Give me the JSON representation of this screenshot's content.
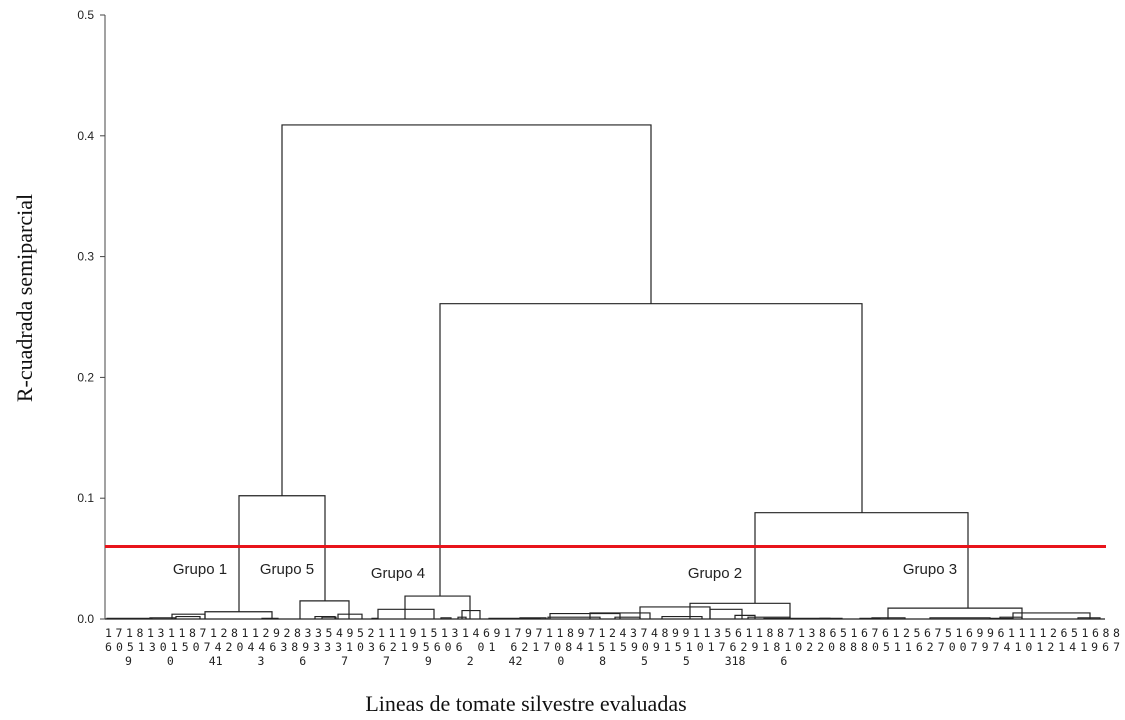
{
  "chart_data": {
    "type": "dendrogram",
    "xlabel": "Lineas de tomate silvestre evaluadas",
    "ylabel": "R-cuadrada semiparcial",
    "ylim": [
      0,
      0.5
    ],
    "y_ticks": [
      "0.0",
      "0.1",
      "0.2",
      "0.3",
      "0.4",
      "0.5"
    ],
    "cutoff_line": {
      "y": 0.06,
      "color": "#e8141b"
    },
    "leaf_label_rows": [
      "1718131187128112928335495211191513146917971189712437489911356118871386516761256751699611112651688",
      "605130150742044638933310362195606 01 62170841515909151017629181022088805116270079741012141967",
      "9 0 41 3 6 7 7 9 2 42 0 8 5 5 318 6"
    ],
    "groups": [
      {
        "name": "Grupo 1"
      },
      {
        "name": "Grupo 5"
      },
      {
        "name": "Grupo 4"
      },
      {
        "name": "Grupo 2"
      },
      {
        "name": "Grupo 3"
      }
    ],
    "merges": [
      {
        "join": [
          "Grupo 1",
          "Grupo 5"
        ],
        "height": 0.102
      },
      {
        "join": [
          "Grupo 2",
          "Grupo 3"
        ],
        "height": 0.088
      },
      {
        "join": [
          "Grupo 4",
          "Grupo 2 + Grupo 3"
        ],
        "height": 0.261
      },
      {
        "join": [
          "Grupo 1 + Grupo 5",
          "Grupo 4 + Grupo 2 + Grupo 3"
        ],
        "height": 0.409
      }
    ],
    "cluster_heights": {
      "Grupo 1": 0.006,
      "Grupo 5": 0.015,
      "Grupo 4": 0.019,
      "Grupo 2": 0.013,
      "Grupo 3": 0.009
    }
  }
}
